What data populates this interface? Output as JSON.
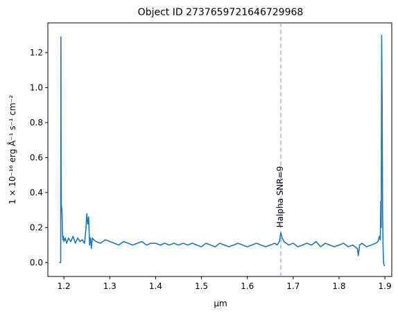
{
  "chart_data": {
    "type": "line",
    "title": "Object ID 2737659721646729968",
    "xlabel": "μm",
    "ylabel": "1 × 10⁻¹⁶ erg Å⁻¹ s⁻¹ cm⁻²",
    "xlim": [
      1.165,
      1.915
    ],
    "ylim": [
      -0.08,
      1.37
    ],
    "xticks": [
      1.2,
      1.3,
      1.4,
      1.5,
      1.6,
      1.7,
      1.8,
      1.9
    ],
    "xtick_labels": [
      "1.2",
      "1.3",
      "1.4",
      "1.5",
      "1.6",
      "1.7",
      "1.8",
      "1.9"
    ],
    "yticks": [
      0.0,
      0.2,
      0.4,
      0.6,
      0.8,
      1.0,
      1.2
    ],
    "ytick_labels": [
      "0.0",
      "0.2",
      "0.4",
      "0.6",
      "0.8",
      "1.0",
      "1.2"
    ],
    "grid": false,
    "series": [
      {
        "color": "#1f77b4",
        "x": [
          1.19,
          1.193,
          1.1935,
          1.194,
          1.1945,
          1.195,
          1.196,
          1.197,
          1.198,
          1.199,
          1.2,
          1.203,
          1.206,
          1.21,
          1.215,
          1.22,
          1.225,
          1.23,
          1.235,
          1.24,
          1.245,
          1.248,
          1.25,
          1.252,
          1.254,
          1.256,
          1.258,
          1.26,
          1.262,
          1.265,
          1.27,
          1.28,
          1.29,
          1.3,
          1.31,
          1.32,
          1.33,
          1.34,
          1.35,
          1.36,
          1.37,
          1.38,
          1.39,
          1.4,
          1.41,
          1.42,
          1.43,
          1.44,
          1.45,
          1.46,
          1.47,
          1.48,
          1.49,
          1.5,
          1.51,
          1.52,
          1.53,
          1.54,
          1.55,
          1.56,
          1.57,
          1.58,
          1.59,
          1.6,
          1.61,
          1.62,
          1.63,
          1.64,
          1.65,
          1.66,
          1.665,
          1.67,
          1.673,
          1.676,
          1.68,
          1.69,
          1.7,
          1.71,
          1.72,
          1.73,
          1.74,
          1.75,
          1.76,
          1.77,
          1.78,
          1.79,
          1.8,
          1.81,
          1.82,
          1.83,
          1.84,
          1.842,
          1.845,
          1.85,
          1.86,
          1.87,
          1.88,
          1.885,
          1.888,
          1.89,
          1.891,
          1.892,
          1.893,
          1.894,
          1.895,
          1.896,
          1.897,
          1.899
        ],
        "y": [
          0.0,
          0.0,
          1.29,
          0.5,
          0.3,
          0.32,
          0.28,
          0.15,
          0.13,
          0.15,
          0.12,
          0.14,
          0.11,
          0.14,
          0.12,
          0.15,
          0.11,
          0.14,
          0.12,
          0.13,
          0.11,
          0.19,
          0.28,
          0.22,
          0.26,
          0.1,
          0.14,
          0.08,
          0.14,
          0.13,
          0.12,
          0.11,
          0.13,
          0.12,
          0.11,
          0.1,
          0.12,
          0.11,
          0.1,
          0.11,
          0.12,
          0.1,
          0.11,
          0.11,
          0.1,
          0.11,
          0.1,
          0.11,
          0.1,
          0.11,
          0.1,
          0.11,
          0.1,
          0.09,
          0.11,
          0.1,
          0.09,
          0.11,
          0.1,
          0.09,
          0.1,
          0.11,
          0.1,
          0.09,
          0.1,
          0.11,
          0.1,
          0.09,
          0.1,
          0.11,
          0.1,
          0.12,
          0.17,
          0.14,
          0.12,
          0.1,
          0.11,
          0.09,
          0.1,
          0.11,
          0.1,
          0.12,
          0.09,
          0.11,
          0.1,
          0.09,
          0.1,
          0.11,
          0.09,
          0.1,
          0.08,
          0.04,
          0.1,
          0.11,
          0.09,
          0.1,
          0.11,
          0.12,
          0.15,
          0.13,
          0.35,
          0.2,
          1.3,
          0.95,
          0.3,
          0.1,
          0.0,
          -0.02
        ]
      }
    ],
    "annotations": [
      {
        "type": "vline",
        "x": 1.673,
        "color": "#8a9cf5",
        "style": "dashed"
      },
      {
        "type": "text",
        "text": "Halpha SNR=9",
        "x": 1.673,
        "y": 0.2,
        "rotation": 90
      }
    ]
  }
}
